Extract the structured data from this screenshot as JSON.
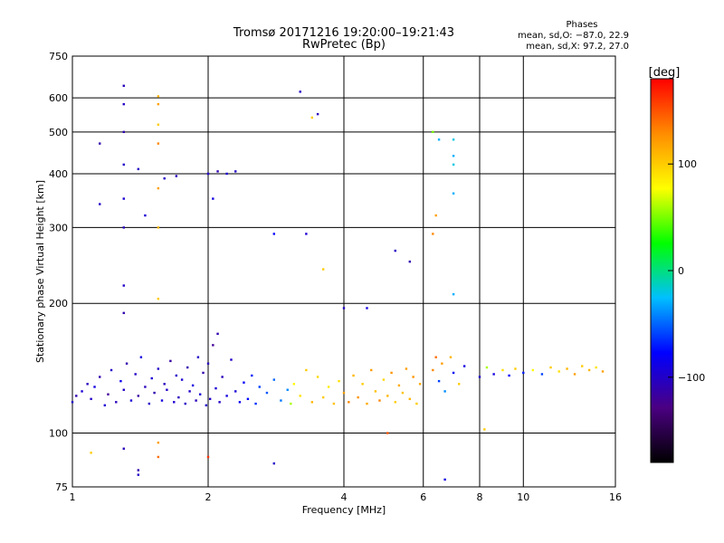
{
  "title_line1": "Tromsø 20171216 19:20:00–19:21:43",
  "title_line2": "RwPretec (Bp)",
  "phases": {
    "heading": "Phases",
    "line_o": "mean, sd,O: −87.0, 22.9",
    "line_x": "mean, sd,X: 97.2, 27.0"
  },
  "colorbar": {
    "label": "[deg]",
    "ticks": [
      "100",
      "0",
      "−100"
    ],
    "tick_values": [
      100,
      0,
      -100
    ],
    "range": [
      -180,
      180
    ],
    "colors": [
      "#000000",
      "#4b0082",
      "#0000ff",
      "#00bfff",
      "#00ff00",
      "#ffff00",
      "#ff8c00",
      "#ff0000"
    ]
  },
  "chart_data": {
    "type": "scatter",
    "xlabel": "Frequency [MHz]",
    "ylabel": "Stationary phase Virtual Height [km]",
    "x_scale": "log",
    "y_scale": "log",
    "xlim": [
      1,
      16
    ],
    "ylim": [
      75,
      750
    ],
    "x_ticks": [
      1,
      2,
      4,
      6,
      8,
      10,
      16
    ],
    "x_tick_labels": [
      "1",
      "2",
      "4",
      "6",
      "8",
      "10",
      "16"
    ],
    "y_ticks": [
      75,
      100,
      200,
      300,
      400,
      500,
      600,
      750
    ],
    "y_tick_labels": [
      "75",
      "100",
      "200",
      "300",
      "400",
      "500",
      "600",
      "750"
    ],
    "grid": true,
    "points": [
      [
        1.0,
        118,
        -100
      ],
      [
        1.02,
        122,
        -110
      ],
      [
        1.05,
        125,
        -95
      ],
      [
        1.08,
        130,
        -105
      ],
      [
        1.1,
        120,
        -100
      ],
      [
        1.12,
        128,
        -90
      ],
      [
        1.15,
        135,
        -110
      ],
      [
        1.18,
        116,
        -95
      ],
      [
        1.2,
        123,
        -120
      ],
      [
        1.22,
        140,
        -100
      ],
      [
        1.25,
        118,
        -105
      ],
      [
        1.28,
        132,
        -85
      ],
      [
        1.3,
        126,
        -100
      ],
      [
        1.32,
        145,
        -110
      ],
      [
        1.35,
        119,
        -95
      ],
      [
        1.38,
        137,
        -100
      ],
      [
        1.4,
        122,
        -115
      ],
      [
        1.42,
        150,
        -90
      ],
      [
        1.45,
        128,
        -105
      ],
      [
        1.48,
        117,
        -100
      ],
      [
        1.5,
        134,
        -95
      ],
      [
        1.52,
        124,
        -110
      ],
      [
        1.55,
        141,
        -100
      ],
      [
        1.58,
        119,
        -90
      ],
      [
        1.6,
        130,
        -105
      ],
      [
        1.62,
        126,
        -100
      ],
      [
        1.65,
        147,
        -115
      ],
      [
        1.68,
        118,
        -95
      ],
      [
        1.7,
        136,
        -100
      ],
      [
        1.72,
        121,
        -105
      ],
      [
        1.75,
        133,
        -95
      ],
      [
        1.78,
        117,
        -100
      ],
      [
        1.8,
        142,
        -110
      ],
      [
        1.82,
        125,
        -100
      ],
      [
        1.85,
        129,
        -90
      ],
      [
        1.88,
        119,
        -105
      ],
      [
        1.9,
        150,
        -100
      ],
      [
        1.92,
        123,
        -95
      ],
      [
        1.95,
        138,
        -110
      ],
      [
        1.98,
        116,
        -100
      ],
      [
        2.0,
        145,
        -105
      ],
      [
        2.02,
        120,
        -100
      ],
      [
        2.05,
        160,
        -120
      ],
      [
        2.08,
        127,
        -95
      ],
      [
        2.1,
        170,
        -110
      ],
      [
        2.12,
        118,
        -100
      ],
      [
        2.15,
        135,
        -105
      ],
      [
        2.2,
        122,
        -90
      ],
      [
        2.25,
        148,
        -100
      ],
      [
        2.3,
        125,
        -95
      ],
      [
        2.35,
        118,
        -85
      ],
      [
        2.4,
        131,
        -80
      ],
      [
        2.45,
        120,
        -75
      ],
      [
        2.5,
        136,
        -70
      ],
      [
        2.55,
        117,
        -65
      ],
      [
        2.6,
        128,
        -60
      ],
      [
        2.7,
        124,
        -55
      ],
      [
        2.8,
        133,
        -50
      ],
      [
        2.9,
        119,
        -45
      ],
      [
        3.0,
        126,
        -40
      ],
      [
        3.05,
        117,
        60
      ],
      [
        3.1,
        130,
        80
      ],
      [
        3.2,
        122,
        90
      ],
      [
        3.3,
        140,
        100
      ],
      [
        3.4,
        118,
        110
      ],
      [
        3.5,
        135,
        95
      ],
      [
        3.6,
        121,
        100
      ],
      [
        3.7,
        128,
        85
      ],
      [
        3.8,
        117,
        105
      ],
      [
        3.9,
        132,
        90
      ],
      [
        4.0,
        124,
        120
      ],
      [
        4.1,
        118,
        130
      ],
      [
        4.2,
        136,
        110
      ],
      [
        4.3,
        121,
        125
      ],
      [
        4.4,
        130,
        100
      ],
      [
        4.5,
        117,
        115
      ],
      [
        4.6,
        140,
        120
      ],
      [
        4.7,
        125,
        105
      ],
      [
        4.8,
        119,
        130
      ],
      [
        4.9,
        133,
        95
      ],
      [
        5.0,
        122,
        110
      ],
      [
        5.1,
        138,
        125
      ],
      [
        5.2,
        118,
        100
      ],
      [
        5.3,
        129,
        115
      ],
      [
        5.4,
        124,
        105
      ],
      [
        5.5,
        141,
        120
      ],
      [
        5.6,
        120,
        110
      ],
      [
        5.7,
        135,
        125
      ],
      [
        5.8,
        117,
        100
      ],
      [
        5.9,
        130,
        115
      ],
      [
        6.3,
        140,
        130
      ],
      [
        6.4,
        150,
        140
      ],
      [
        6.5,
        132,
        -60
      ],
      [
        6.6,
        145,
        120
      ],
      [
        6.7,
        125,
        -40
      ],
      [
        6.9,
        150,
        110
      ],
      [
        7.0,
        138,
        -80
      ],
      [
        7.2,
        130,
        100
      ],
      [
        7.4,
        143,
        -90
      ],
      [
        8.0,
        135,
        -100
      ],
      [
        8.3,
        142,
        60
      ],
      [
        8.6,
        137,
        -90
      ],
      [
        9.0,
        140,
        90
      ],
      [
        9.3,
        136,
        -80
      ],
      [
        9.6,
        141,
        100
      ],
      [
        10.0,
        138,
        -70
      ],
      [
        10.5,
        140,
        80
      ],
      [
        11.0,
        137,
        -60
      ],
      [
        11.5,
        142,
        100
      ],
      [
        12.0,
        139,
        90
      ],
      [
        12.5,
        141,
        110
      ],
      [
        13.0,
        137,
        120
      ],
      [
        13.5,
        143,
        100
      ],
      [
        14.0,
        140,
        110
      ],
      [
        14.5,
        142,
        90
      ],
      [
        15.0,
        139,
        120
      ],
      [
        1.3,
        190,
        -110
      ],
      [
        1.3,
        220,
        -100
      ],
      [
        1.3,
        300,
        -105
      ],
      [
        1.3,
        350,
        -95
      ],
      [
        1.3,
        420,
        -100
      ],
      [
        1.3,
        500,
        -110
      ],
      [
        1.3,
        580,
        -100
      ],
      [
        1.3,
        640,
        -105
      ],
      [
        1.55,
        205,
        100
      ],
      [
        1.55,
        300,
        110
      ],
      [
        1.55,
        370,
        120
      ],
      [
        1.55,
        470,
        130
      ],
      [
        1.55,
        520,
        100
      ],
      [
        1.55,
        580,
        120
      ],
      [
        1.55,
        605,
        110
      ],
      [
        1.15,
        340,
        -100
      ],
      [
        1.15,
        470,
        -110
      ],
      [
        1.4,
        410,
        -100
      ],
      [
        1.45,
        320,
        -95
      ],
      [
        1.6,
        390,
        -100
      ],
      [
        1.7,
        395,
        -105
      ],
      [
        2.0,
        400,
        -100
      ],
      [
        2.1,
        405,
        -110
      ],
      [
        2.2,
        400,
        -95
      ],
      [
        2.3,
        405,
        -100
      ],
      [
        2.05,
        350,
        -90
      ],
      [
        3.2,
        620,
        -100
      ],
      [
        3.5,
        550,
        -105
      ],
      [
        3.4,
        540,
        100
      ],
      [
        3.3,
        290,
        -95
      ],
      [
        3.6,
        240,
        100
      ],
      [
        2.8,
        290,
        -80
      ],
      [
        4.0,
        195,
        -100
      ],
      [
        4.5,
        195,
        -90
      ],
      [
        5.2,
        265,
        -100
      ],
      [
        5.6,
        250,
        -110
      ],
      [
        6.3,
        500,
        50
      ],
      [
        6.5,
        480,
        -30
      ],
      [
        7.0,
        480,
        -20
      ],
      [
        7.0,
        440,
        -30
      ],
      [
        7.0,
        420,
        -20
      ],
      [
        7.0,
        360,
        -30
      ],
      [
        6.4,
        320,
        120
      ],
      [
        6.3,
        290,
        130
      ],
      [
        7.0,
        210,
        -30
      ],
      [
        1.1,
        90,
        100
      ],
      [
        1.3,
        92,
        -105
      ],
      [
        1.55,
        95,
        120
      ],
      [
        1.55,
        88,
        140
      ],
      [
        1.4,
        82,
        -110
      ],
      [
        1.4,
        80,
        -100
      ],
      [
        2.0,
        88,
        160
      ],
      [
        2.8,
        85,
        -100
      ],
      [
        6.7,
        78,
        -90
      ],
      [
        8.2,
        102,
        100
      ],
      [
        5.0,
        100,
        150
      ]
    ]
  }
}
